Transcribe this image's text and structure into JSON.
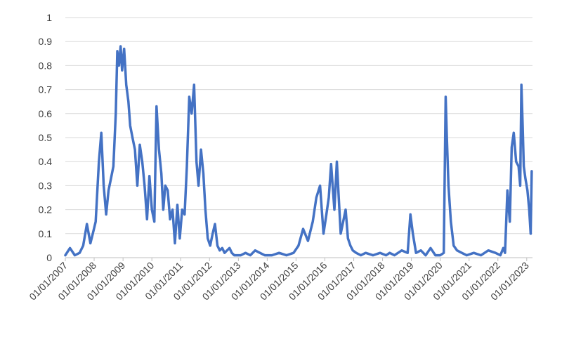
{
  "chart_data": {
    "type": "line",
    "title": "",
    "xlabel": "",
    "ylabel": "",
    "ylim": [
      0,
      1
    ],
    "y_ticks": [
      "0",
      "0.1",
      "0.2",
      "0.3",
      "0.4",
      "0.5",
      "0.6",
      "0.7",
      "0.8",
      "0.9",
      "1"
    ],
    "x_ticks": [
      "01/01/2007",
      "01/01/2008",
      "01/01/2009",
      "01/01/2010",
      "01/01/2011",
      "01/01/2012",
      "01/01/2013",
      "01/01/2014",
      "01/01/2015",
      "01/01/2016",
      "01/01/2017",
      "01/01/2018",
      "01/01/2019",
      "01/01/2020",
      "01/01/2021",
      "01/01/2022",
      "01/01/2023"
    ],
    "grid": true,
    "legend": "none",
    "series": [
      {
        "color": "#4472c4",
        "x": [
          "2007-01-01",
          "2007-03-01",
          "2007-05-01",
          "2007-07-01",
          "2007-08-15",
          "2007-10-01",
          "2007-11-15",
          "2007-12-15",
          "2008-01-20",
          "2008-03-01",
          "2008-04-01",
          "2008-05-01",
          "2008-06-01",
          "2008-07-01",
          "2008-08-01",
          "2008-09-01",
          "2008-10-01",
          "2008-10-20",
          "2008-11-10",
          "2008-12-01",
          "2008-12-20",
          "2009-01-15",
          "2009-02-10",
          "2009-03-10",
          "2009-04-01",
          "2009-05-01",
          "2009-06-01",
          "2009-07-01",
          "2009-08-01",
          "2009-09-01",
          "2009-10-01",
          "2009-11-01",
          "2009-12-01",
          "2010-01-01",
          "2010-02-01",
          "2010-03-01",
          "2010-04-01",
          "2010-05-01",
          "2010-05-25",
          "2010-06-20",
          "2010-07-20",
          "2010-08-20",
          "2010-09-20",
          "2010-10-20",
          "2010-11-20",
          "2010-12-20",
          "2011-01-20",
          "2011-02-20",
          "2011-03-20",
          "2011-04-20",
          "2011-05-20",
          "2011-06-20",
          "2011-07-20",
          "2011-08-15",
          "2011-09-15",
          "2011-10-15",
          "2011-11-10",
          "2011-12-10",
          "2012-01-10",
          "2012-02-10",
          "2012-03-10",
          "2012-04-10",
          "2012-05-10",
          "2012-06-10",
          "2012-07-10",
          "2012-08-10",
          "2012-09-10",
          "2012-10-10",
          "2012-11-10",
          "2012-12-10",
          "2013-02-01",
          "2013-04-01",
          "2013-06-01",
          "2013-08-01",
          "2013-10-01",
          "2013-12-01",
          "2014-03-01",
          "2014-06-01",
          "2014-09-01",
          "2014-12-01",
          "2015-02-01",
          "2015-04-01",
          "2015-06-01",
          "2015-08-01",
          "2015-09-15",
          "2015-11-01",
          "2015-12-15",
          "2016-01-20",
          "2016-02-20",
          "2016-03-20",
          "2016-05-01",
          "2016-06-01",
          "2016-06-25",
          "2016-07-20",
          "2016-08-20",
          "2016-09-20",
          "2016-10-20",
          "2016-11-20",
          "2016-12-20",
          "2017-02-01",
          "2017-04-01",
          "2017-06-01",
          "2017-09-01",
          "2017-12-01",
          "2018-02-15",
          "2018-04-01",
          "2018-06-01",
          "2018-09-01",
          "2018-11-15",
          "2018-12-20",
          "2019-01-20",
          "2019-03-01",
          "2019-05-01",
          "2019-07-01",
          "2019-09-01",
          "2019-11-01",
          "2020-01-01",
          "2020-02-15",
          "2020-03-10",
          "2020-03-25",
          "2020-04-15",
          "2020-05-15",
          "2020-06-20",
          "2020-08-01",
          "2020-10-01",
          "2020-12-01",
          "2021-03-01",
          "2021-06-01",
          "2021-09-01",
          "2021-12-01",
          "2022-02-01",
          "2022-03-10",
          "2022-04-01",
          "2022-05-01",
          "2022-06-01",
          "2022-06-25",
          "2022-07-20",
          "2022-08-20",
          "2022-09-20",
          "2022-10-10",
          "2022-10-25",
          "2022-11-10",
          "2022-11-25",
          "2022-12-15",
          "2023-01-10",
          "2023-02-01",
          "2023-02-20",
          "2023-03-05"
        ],
        "y": [
          0.01,
          0.04,
          0.01,
          0.02,
          0.05,
          0.14,
          0.06,
          0.1,
          0.15,
          0.4,
          0.52,
          0.3,
          0.18,
          0.28,
          0.33,
          0.38,
          0.6,
          0.86,
          0.8,
          0.88,
          0.78,
          0.87,
          0.72,
          0.65,
          0.55,
          0.5,
          0.45,
          0.3,
          0.47,
          0.4,
          0.3,
          0.16,
          0.34,
          0.2,
          0.15,
          0.63,
          0.45,
          0.35,
          0.2,
          0.3,
          0.28,
          0.16,
          0.2,
          0.06,
          0.22,
          0.08,
          0.2,
          0.18,
          0.38,
          0.67,
          0.6,
          0.72,
          0.4,
          0.3,
          0.45,
          0.35,
          0.2,
          0.08,
          0.05,
          0.1,
          0.14,
          0.05,
          0.03,
          0.04,
          0.02,
          0.03,
          0.04,
          0.02,
          0.01,
          0.01,
          0.01,
          0.02,
          0.01,
          0.03,
          0.02,
          0.01,
          0.01,
          0.02,
          0.01,
          0.02,
          0.05,
          0.12,
          0.07,
          0.15,
          0.25,
          0.3,
          0.1,
          0.18,
          0.25,
          0.39,
          0.2,
          0.4,
          0.25,
          0.1,
          0.15,
          0.2,
          0.08,
          0.05,
          0.03,
          0.02,
          0.01,
          0.02,
          0.01,
          0.02,
          0.01,
          0.02,
          0.01,
          0.03,
          0.02,
          0.18,
          0.1,
          0.02,
          0.03,
          0.01,
          0.04,
          0.01,
          0.01,
          0.02,
          0.67,
          0.5,
          0.3,
          0.15,
          0.05,
          0.03,
          0.02,
          0.01,
          0.02,
          0.01,
          0.03,
          0.02,
          0.01,
          0.04,
          0.02,
          0.28,
          0.15,
          0.46,
          0.52,
          0.4,
          0.38,
          0.3,
          0.72,
          0.55,
          0.38,
          0.33,
          0.28,
          0.2,
          0.1,
          0.36
        ]
      }
    ]
  }
}
